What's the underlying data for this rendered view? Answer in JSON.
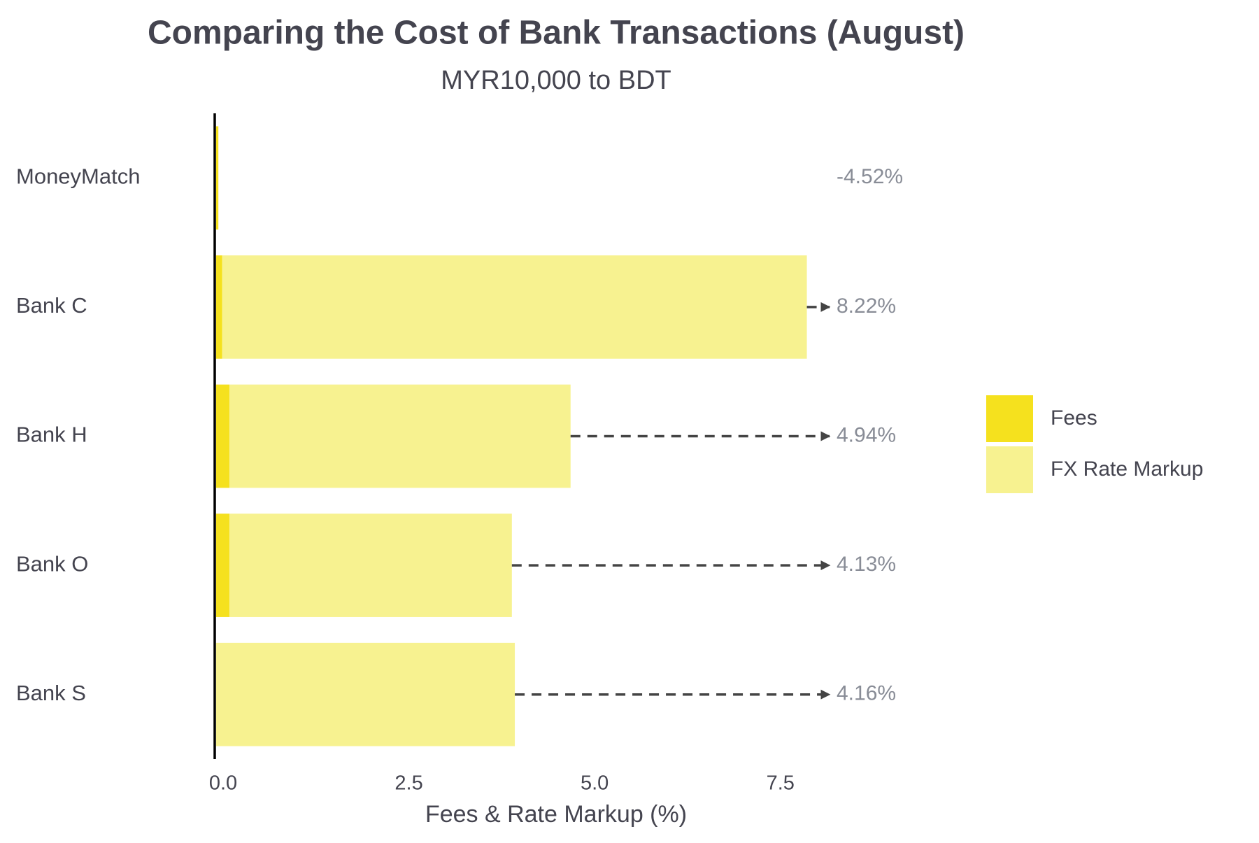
{
  "chart_data": {
    "type": "stacked-barh",
    "title": "Comparing the Cost of Bank Transactions (August)",
    "subtitle": "MYR10,000 to BDT",
    "x_label": "Fees & Rate Markup (%)",
    "categories": [
      "MoneyMatch",
      "Bank C",
      "Bank H",
      "Bank O",
      "Bank S"
    ],
    "series": [
      {
        "name": "Fees",
        "color": "#f5e11e",
        "values": [
          0.03,
          0.08,
          0.18,
          0.18,
          0.0
        ]
      },
      {
        "name": "FX Rate Markup",
        "color": "#f7f290",
        "values": [
          0.0,
          7.87,
          4.59,
          3.8,
          4.02
        ]
      }
    ],
    "annotations": [
      "-4.52%",
      "8.22%",
      "4.94%",
      "4.13%",
      "4.16%"
    ],
    "xlim": [
      0,
      8.5
    ],
    "xticks": [
      {
        "value": 0,
        "label": "0.0"
      },
      2.5,
      {
        "value": 5,
        "label": "5.0"
      },
      7.5
    ],
    "grid": false,
    "legend": "right"
  }
}
